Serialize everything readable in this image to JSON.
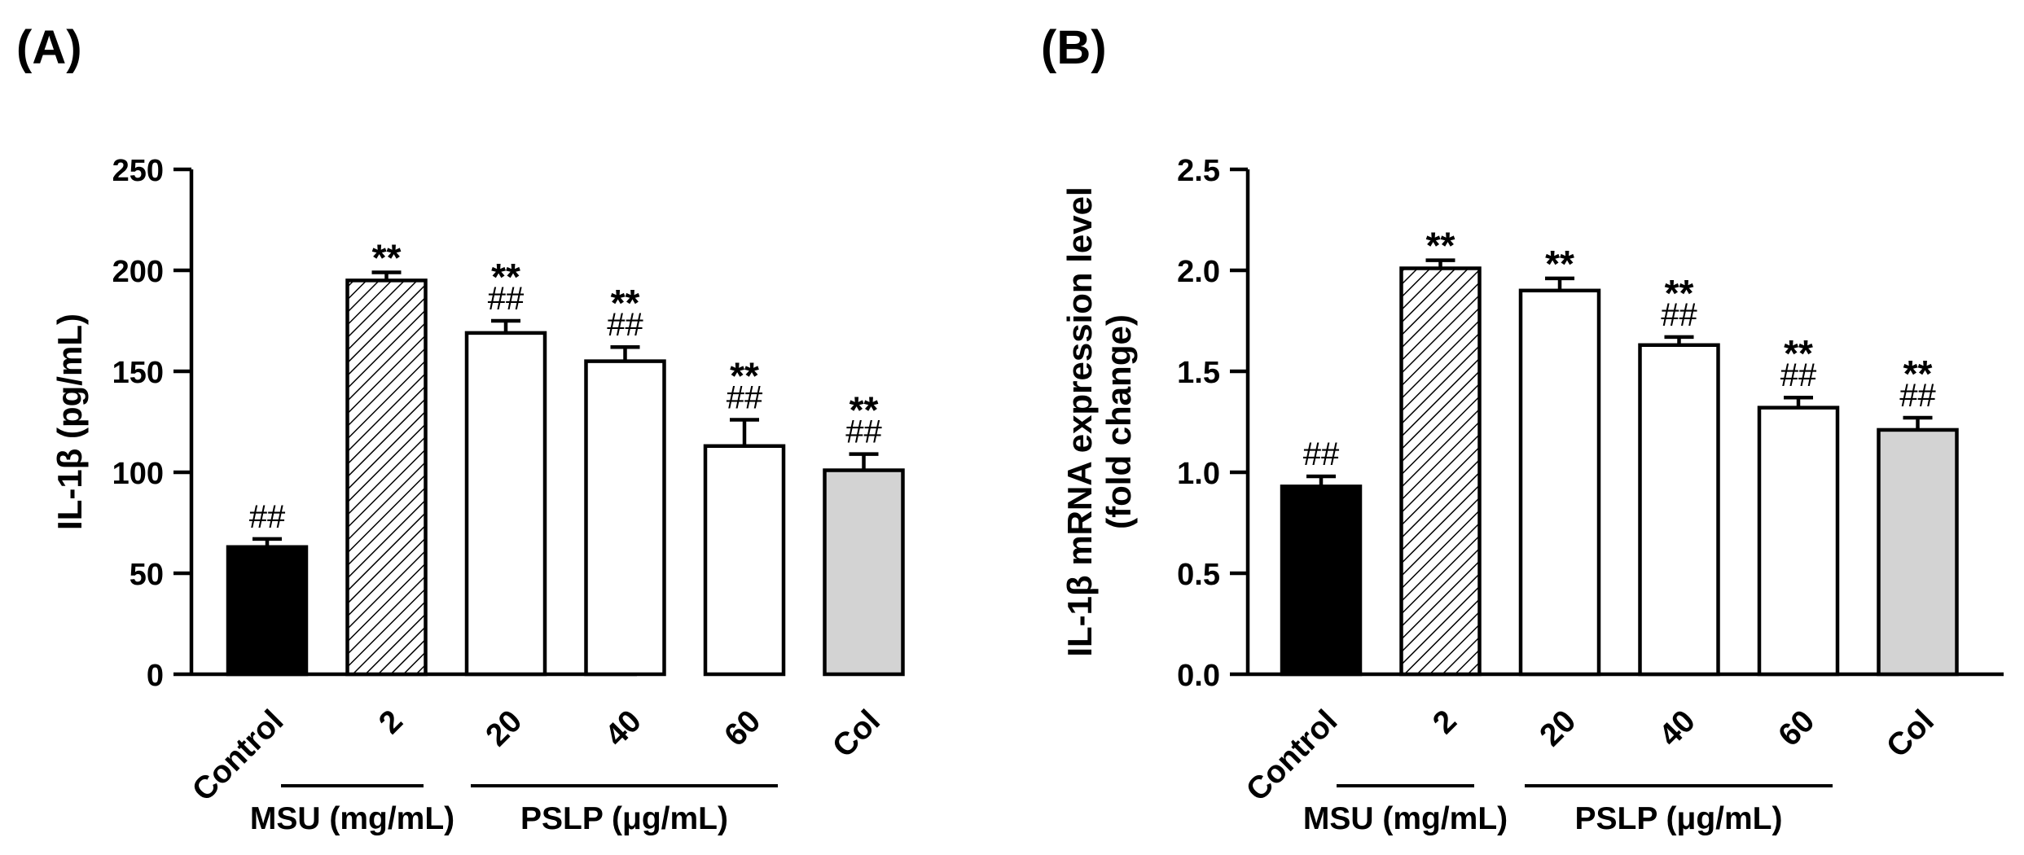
{
  "charts": [
    {
      "panel_label": "(A)",
      "ylabel": "IL-1β (pg/mL)",
      "ylabel_lines": [
        "IL-1β (pg/mL)"
      ],
      "yticks": [
        "0",
        "50",
        "100",
        "150",
        "200",
        "250"
      ]
    },
    {
      "panel_label": "(B)",
      "ylabel": "IL-1β mRNA expression level (fold change)",
      "ylabel_lines": [
        "IL-1β mRNA expression level",
        "(fold change)"
      ],
      "yticks": [
        "0.0",
        "0.5",
        "1.0",
        "1.5",
        "2.0",
        "2.5"
      ]
    }
  ],
  "groups": [
    {
      "label": "MSU (mg/mL)"
    },
    {
      "label": "PSLP (μg/mL)"
    }
  ],
  "chart_data": [
    {
      "type": "bar",
      "title": "(A)",
      "xlabel": "",
      "ylabel": "IL-1β (pg/mL)",
      "ylim": [
        0,
        250
      ],
      "categories": [
        "Control",
        "2",
        "20",
        "40",
        "60",
        "Col"
      ],
      "values": [
        63,
        195,
        169,
        155,
        113,
        101
      ],
      "errors": [
        4,
        4,
        6,
        7,
        13,
        8
      ],
      "annotations_star": [
        "",
        "**",
        "**",
        "**",
        "**",
        "**"
      ],
      "annotations_hash": [
        "##",
        "",
        "##",
        "##",
        "##",
        "##"
      ],
      "fills": [
        "solid-black",
        "hatched",
        "white",
        "white",
        "white",
        "light-gray"
      ],
      "colors": {
        "black": "#000000",
        "white": "#ffffff",
        "gray": "#d3d3d3"
      }
    },
    {
      "type": "bar",
      "title": "(B)",
      "xlabel": "",
      "ylabel": "IL-1β mRNA expression level (fold change)",
      "ylim": [
        0,
        2.5
      ],
      "categories": [
        "Control",
        "2",
        "20",
        "40",
        "60",
        "Col"
      ],
      "values": [
        0.93,
        2.01,
        1.9,
        1.63,
        1.32,
        1.21
      ],
      "errors": [
        0.05,
        0.04,
        0.06,
        0.04,
        0.05,
        0.06
      ],
      "annotations_star": [
        "",
        "**",
        "**",
        "**",
        "**",
        "**"
      ],
      "annotations_hash": [
        "##",
        "",
        "",
        "##",
        "##",
        "##"
      ],
      "fills": [
        "solid-black",
        "hatched",
        "white",
        "white",
        "white",
        "light-gray"
      ],
      "colors": {
        "black": "#000000",
        "white": "#ffffff",
        "gray": "#d3d3d3"
      }
    }
  ]
}
